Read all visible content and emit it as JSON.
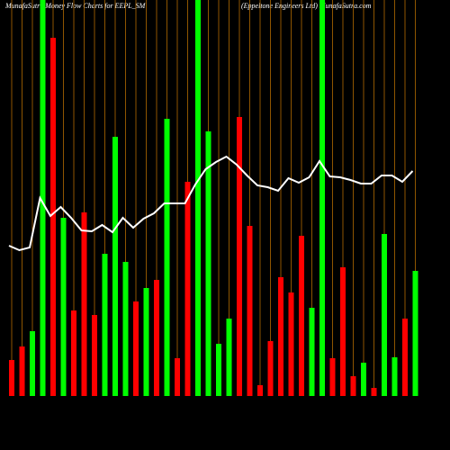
{
  "chart_data": {
    "type": "bar",
    "title": "MunafaSutra  Money Flow  Charts for EEPL_SM",
    "subtitle": "(Eppeltone    Engineers Ltd) MunafaSutra.com",
    "values": [
      40,
      55,
      72,
      440,
      398,
      198,
      95,
      204,
      90,
      158,
      288,
      149,
      105,
      120,
      129,
      308,
      42,
      238,
      440,
      294,
      58,
      86,
      310,
      189,
      12,
      61,
      132,
      115,
      178,
      98,
      440,
      42,
      143,
      22,
      37,
      9,
      180,
      43,
      86,
      139
    ],
    "colors": [
      "#ff0000",
      "#ff0000",
      "#00ff00",
      "#00ff00",
      "#ff0000",
      "#00ff00",
      "#ff0000",
      "#ff0000",
      "#ff0000",
      "#00ff00",
      "#00ff00",
      "#00ff00",
      "#ff0000",
      "#00ff00",
      "#ff0000",
      "#00ff00",
      "#ff0000",
      "#ff0000",
      "#00ff00",
      "#00ff00",
      "#00ff00",
      "#00ff00",
      "#ff0000",
      "#ff0000",
      "#ff0000",
      "#ff0000",
      "#ff0000",
      "#ff0000",
      "#ff0000",
      "#00ff00",
      "#00ff00",
      "#ff0000",
      "#ff0000",
      "#ff0000",
      "#00ff00",
      "#ff0000",
      "#00ff00",
      "#00ff00",
      "#ff0000",
      "#00ff00"
    ],
    "line": {
      "color": "#ffffff",
      "values": [
        167,
        162,
        165,
        220,
        200,
        210,
        198,
        184,
        183,
        190,
        182,
        198,
        187,
        197,
        203,
        214,
        214,
        214,
        235,
        252,
        260,
        266,
        257,
        245,
        234,
        232,
        228,
        242,
        237,
        243,
        261,
        244,
        243,
        240,
        236,
        236,
        245,
        245,
        238,
        250
      ]
    },
    "ylim": [
      0,
      440
    ],
    "grid_color": "#b36b00"
  }
}
